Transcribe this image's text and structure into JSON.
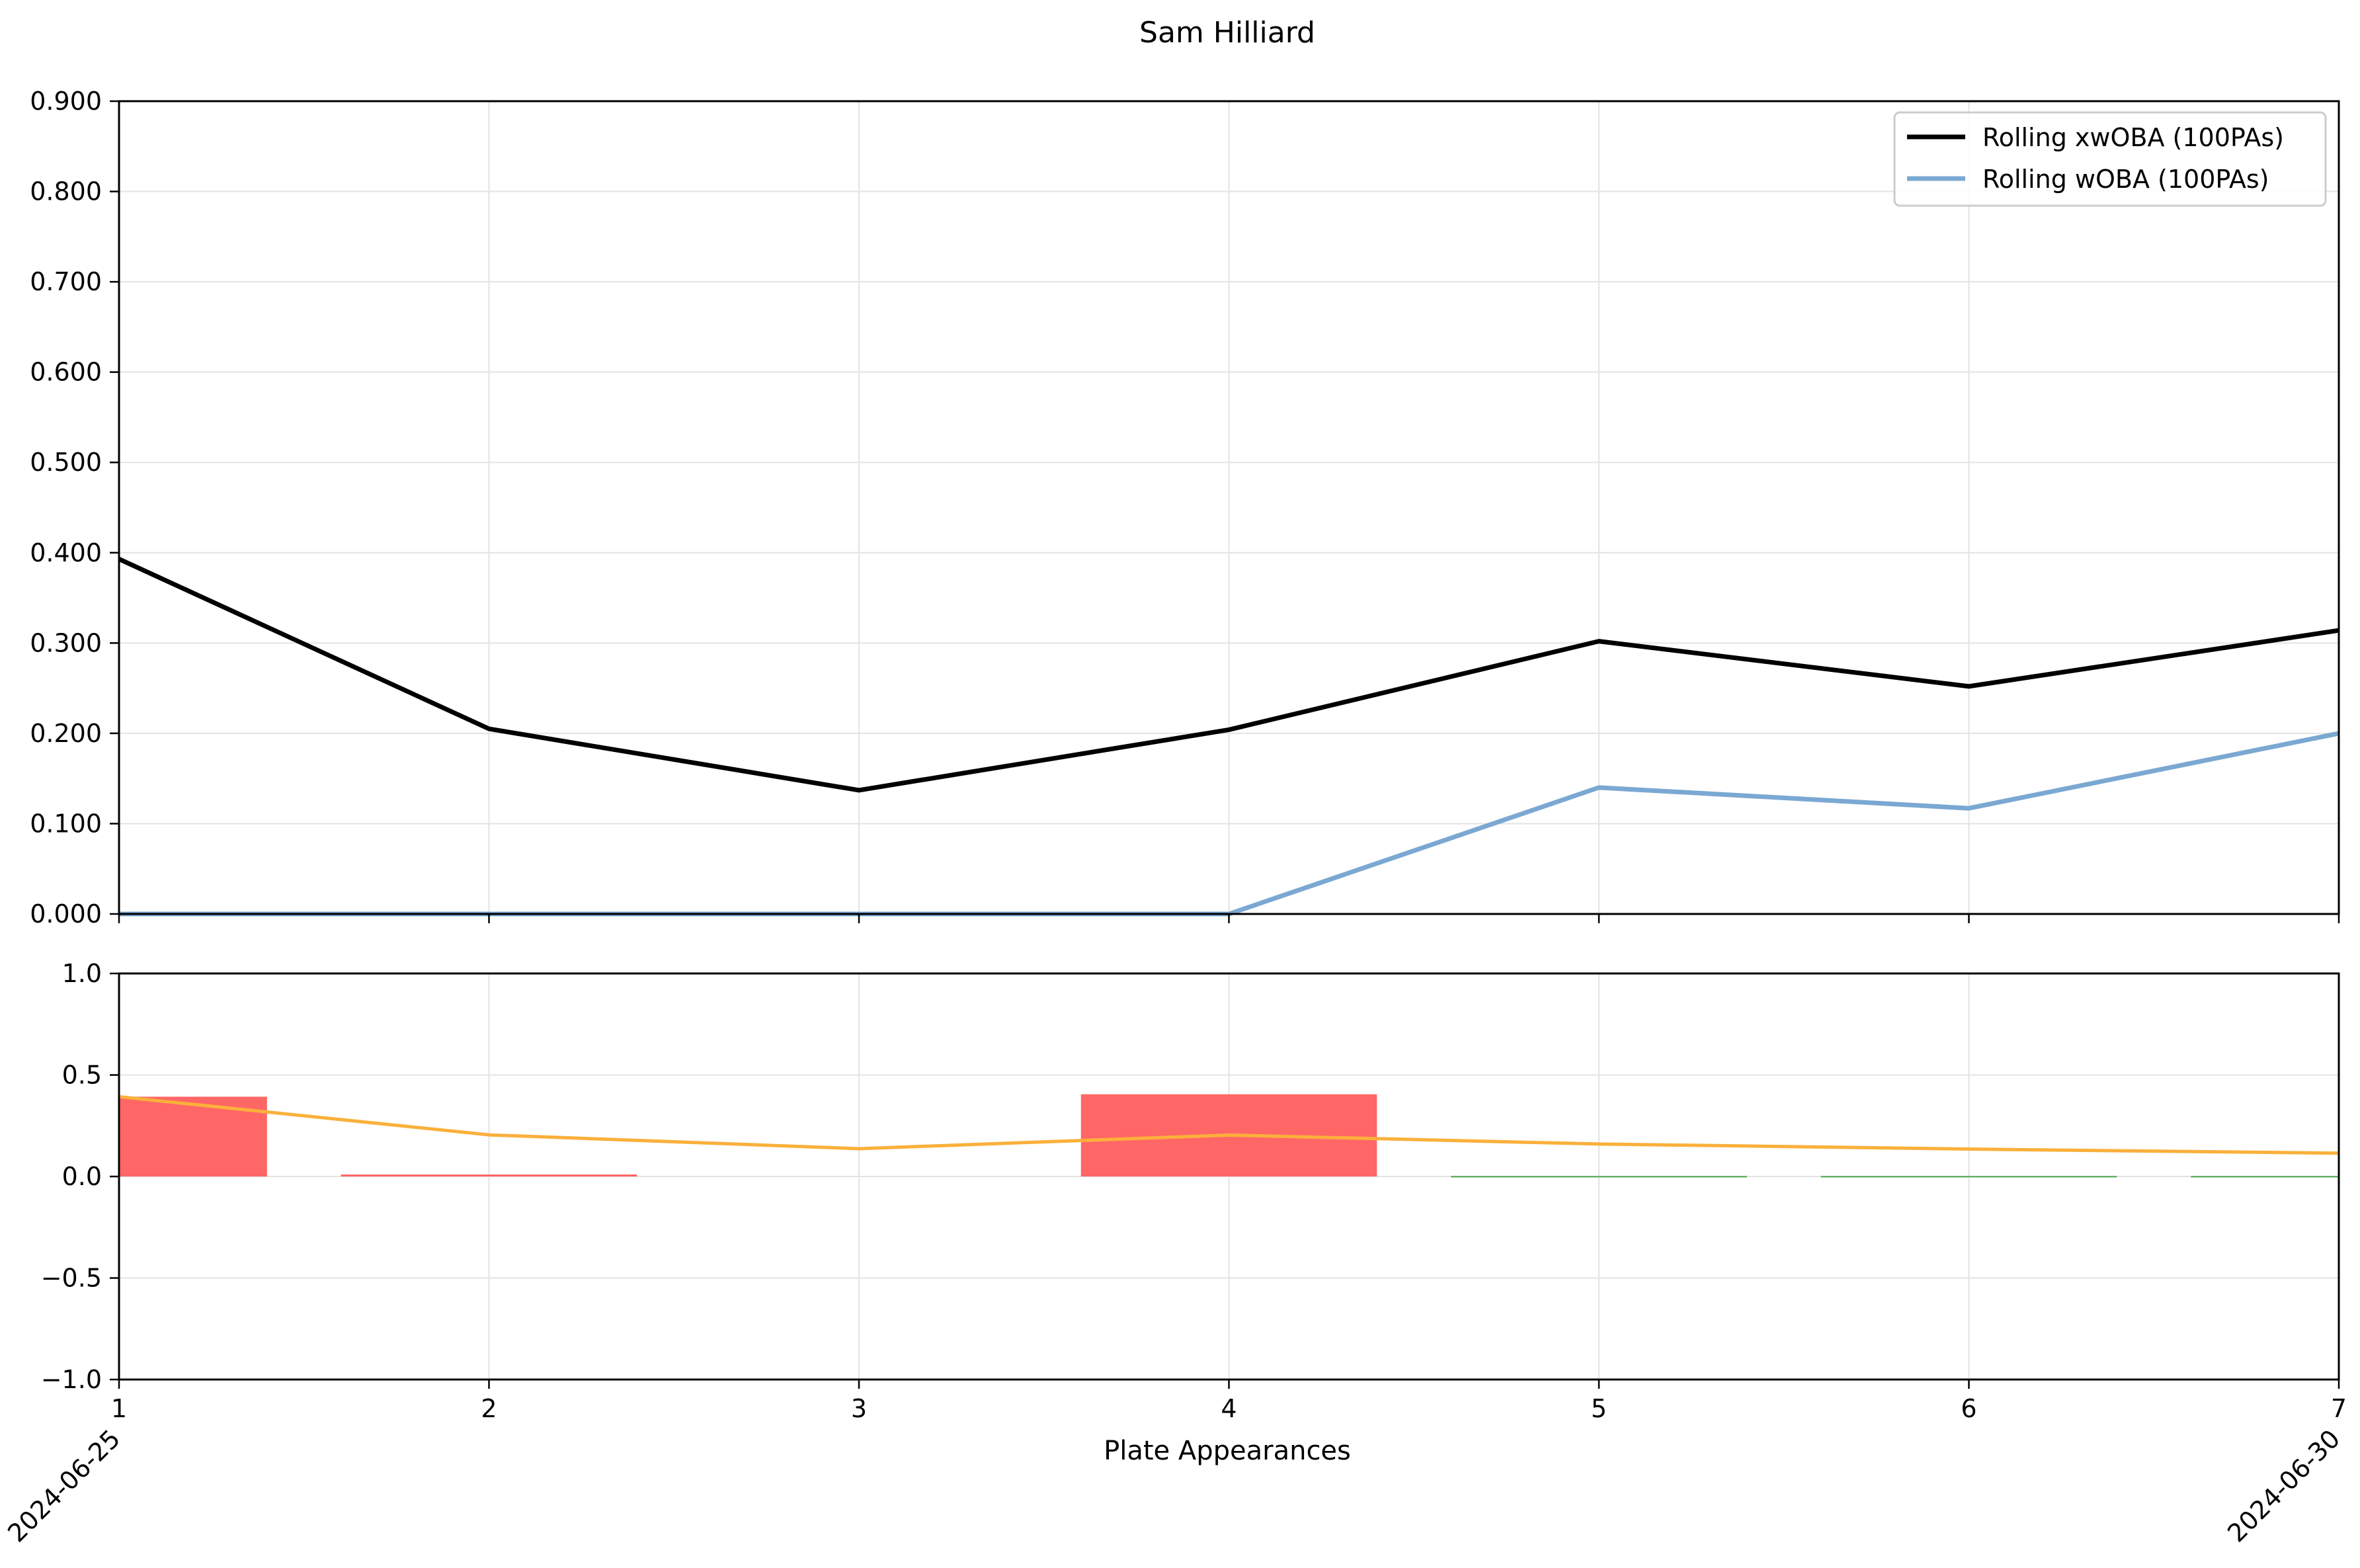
{
  "chart_data": [
    {
      "type": "line",
      "title": "Sam Hilliard",
      "x": [
        1,
        2,
        3,
        4,
        5,
        6,
        7
      ],
      "xlim": [
        1,
        7
      ],
      "ylim": [
        0.0,
        0.9
      ],
      "yticks": [
        "0.000",
        "0.100",
        "0.200",
        "0.300",
        "0.400",
        "0.500",
        "0.600",
        "0.700",
        "0.800",
        "0.900"
      ],
      "grid": true,
      "legend_position": "top-right",
      "series": [
        {
          "name": "Rolling xwOBA (100PAs)",
          "color": "#000000",
          "values": [
            0.393,
            0.205,
            0.137,
            0.204,
            0.302,
            0.252,
            0.314
          ]
        },
        {
          "name": "Rolling wOBA (100PAs)",
          "color": "#7aa8d2",
          "values": [
            0.0,
            0.0,
            0.0,
            0.0,
            0.14,
            0.117,
            0.2
          ]
        }
      ]
    },
    {
      "type": "bar",
      "x": [
        1,
        2,
        3,
        4,
        5,
        6,
        7
      ],
      "xlim": [
        1,
        7
      ],
      "ylim": [
        -1.0,
        1.0
      ],
      "yticks": [
        "−1.0",
        "−0.5",
        "0.0",
        "0.5",
        "1.0"
      ],
      "xticks": [
        "1",
        "2",
        "3",
        "4",
        "5",
        "6",
        "7"
      ],
      "xlabel": "Plate Appearances",
      "date_labels": [
        {
          "x": 1,
          "label": "2024-06-25"
        },
        {
          "x": 7,
          "label": "2024-06-30"
        }
      ],
      "grid": true,
      "bar_values": [
        0.393,
        0.01,
        0.0,
        0.405,
        0.0,
        0.0,
        0.0
      ],
      "bar_colors": [
        "#ff6666",
        "#ff6666",
        "#ff6666",
        "#ff6666",
        "#66b266",
        "#66b266",
        "#66b266"
      ],
      "line": {
        "color": "#fbb03b",
        "values": [
          0.393,
          0.205,
          0.137,
          0.204,
          0.16,
          0.135,
          0.115
        ]
      }
    }
  ]
}
